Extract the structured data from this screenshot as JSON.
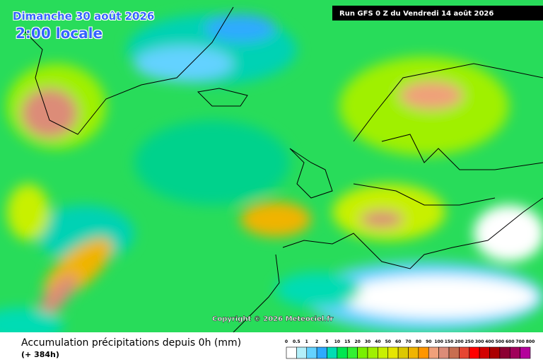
{
  "header": {
    "date": "Dimanche 30 août 2026",
    "time": "2:00 locale",
    "run": "Run GFS 0 Z du Vendredi 14 août 2026"
  },
  "copyright": "Copyright © 2026 Meteociel.fr",
  "legend": {
    "title": "Accumulation précipitations depuis 0h (mm)",
    "subtitle": "(+ 384h)",
    "labels": [
      "0",
      "0.5",
      "1",
      "2",
      "5",
      "10",
      "15",
      "20",
      "30",
      "40",
      "50",
      "60",
      "70",
      "80",
      "90",
      "100",
      "150",
      "200",
      "250",
      "300",
      "400",
      "500",
      "600",
      "700",
      "800"
    ],
    "colors": [
      "#ffffff",
      "#b4f0fa",
      "#64d2ff",
      "#2daaff",
      "#00dcb4",
      "#00e650",
      "#32f032",
      "#78f000",
      "#a0f000",
      "#c8f000",
      "#e6e600",
      "#dcc800",
      "#f0b400",
      "#ff9600",
      "#f0a07a",
      "#dc8c78",
      "#c86e50",
      "#e64632",
      "#ff0000",
      "#d20000",
      "#aa0000",
      "#8c0032",
      "#a0005a",
      "#b4009b",
      "#d200d2"
    ]
  }
}
